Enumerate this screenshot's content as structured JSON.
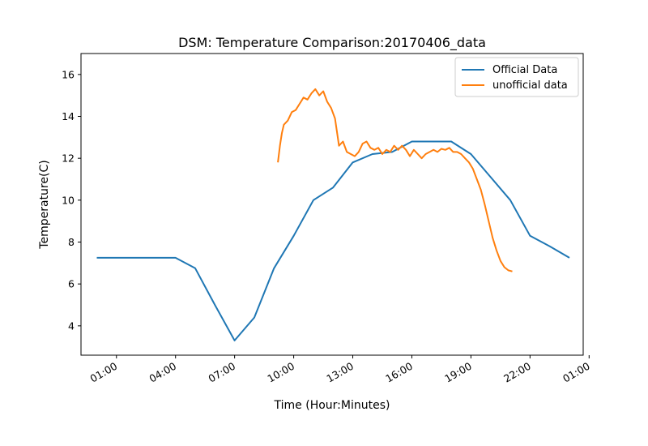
{
  "chart_data": {
    "type": "line",
    "title": "DSM: Temperature Comparison:20170406_data",
    "xlabel": "Time (Hour:Minutes)",
    "ylabel": "Temperature(C)",
    "x_unit": "hours since 00:00 on 2017-04-06",
    "xlim": [
      -0.8,
      24.7
    ],
    "ylim": [
      2.6,
      17
    ],
    "yticks": [
      4,
      6,
      8,
      10,
      12,
      14,
      16
    ],
    "xticks": [
      {
        "label": "01:00",
        "value": 1
      },
      {
        "label": "04:00",
        "value": 4
      },
      {
        "label": "07:00",
        "value": 7
      },
      {
        "label": "10:00",
        "value": 10
      },
      {
        "label": "13:00",
        "value": 13
      },
      {
        "label": "16:00",
        "value": 16
      },
      {
        "label": "19:00",
        "value": 19
      },
      {
        "label": "22:00",
        "value": 22
      },
      {
        "label": "01:00",
        "value": 25
      }
    ],
    "legend_position": "top-right",
    "grid": false,
    "series": [
      {
        "name": "Official Data",
        "color": "#1f77b4",
        "points": [
          [
            0,
            7.25
          ],
          [
            1,
            7.25
          ],
          [
            2,
            7.25
          ],
          [
            3,
            7.25
          ],
          [
            4,
            7.25
          ],
          [
            5,
            6.75
          ],
          [
            6,
            5.0
          ],
          [
            7,
            3.3
          ],
          [
            8,
            4.4
          ],
          [
            9,
            6.75
          ],
          [
            10,
            8.3
          ],
          [
            11,
            10.0
          ],
          [
            12,
            10.6
          ],
          [
            13,
            11.8
          ],
          [
            14,
            12.2
          ],
          [
            15,
            12.3
          ],
          [
            16,
            12.8
          ],
          [
            17,
            12.8
          ],
          [
            18,
            12.8
          ],
          [
            19,
            12.2
          ],
          [
            20,
            11.1
          ],
          [
            21,
            10.0
          ],
          [
            22,
            8.3
          ],
          [
            23,
            7.8
          ],
          [
            24,
            7.25
          ]
        ]
      },
      {
        "name": "unofficial data",
        "color": "#ff7f0e",
        "points": [
          [
            9.2,
            11.8
          ],
          [
            9.3,
            12.6
          ],
          [
            9.4,
            13.2
          ],
          [
            9.5,
            13.6
          ],
          [
            9.7,
            13.8
          ],
          [
            9.9,
            14.2
          ],
          [
            10.1,
            14.3
          ],
          [
            10.3,
            14.6
          ],
          [
            10.5,
            14.9
          ],
          [
            10.7,
            14.8
          ],
          [
            10.9,
            15.1
          ],
          [
            11.1,
            15.3
          ],
          [
            11.3,
            15.0
          ],
          [
            11.5,
            15.2
          ],
          [
            11.7,
            14.7
          ],
          [
            11.9,
            14.4
          ],
          [
            12.1,
            13.9
          ],
          [
            12.3,
            12.6
          ],
          [
            12.5,
            12.8
          ],
          [
            12.7,
            12.3
          ],
          [
            12.9,
            12.2
          ],
          [
            13.1,
            12.1
          ],
          [
            13.3,
            12.3
          ],
          [
            13.5,
            12.7
          ],
          [
            13.7,
            12.8
          ],
          [
            13.9,
            12.5
          ],
          [
            14.1,
            12.4
          ],
          [
            14.3,
            12.5
          ],
          [
            14.5,
            12.2
          ],
          [
            14.7,
            12.4
          ],
          [
            14.9,
            12.3
          ],
          [
            15.1,
            12.6
          ],
          [
            15.3,
            12.4
          ],
          [
            15.5,
            12.6
          ],
          [
            15.7,
            12.4
          ],
          [
            15.9,
            12.1
          ],
          [
            16.1,
            12.4
          ],
          [
            16.3,
            12.2
          ],
          [
            16.5,
            12.0
          ],
          [
            16.7,
            12.2
          ],
          [
            16.9,
            12.3
          ],
          [
            17.1,
            12.4
          ],
          [
            17.3,
            12.3
          ],
          [
            17.5,
            12.45
          ],
          [
            17.7,
            12.4
          ],
          [
            17.9,
            12.5
          ],
          [
            18.1,
            12.3
          ],
          [
            18.3,
            12.3
          ],
          [
            18.5,
            12.2
          ],
          [
            18.7,
            12.0
          ],
          [
            18.9,
            11.8
          ],
          [
            19.1,
            11.5
          ],
          [
            19.3,
            11.0
          ],
          [
            19.5,
            10.5
          ],
          [
            19.7,
            9.8
          ],
          [
            19.9,
            9.0
          ],
          [
            20.1,
            8.2
          ],
          [
            20.3,
            7.6
          ],
          [
            20.5,
            7.1
          ],
          [
            20.7,
            6.8
          ],
          [
            20.9,
            6.65
          ],
          [
            21.1,
            6.6
          ]
        ]
      }
    ]
  }
}
